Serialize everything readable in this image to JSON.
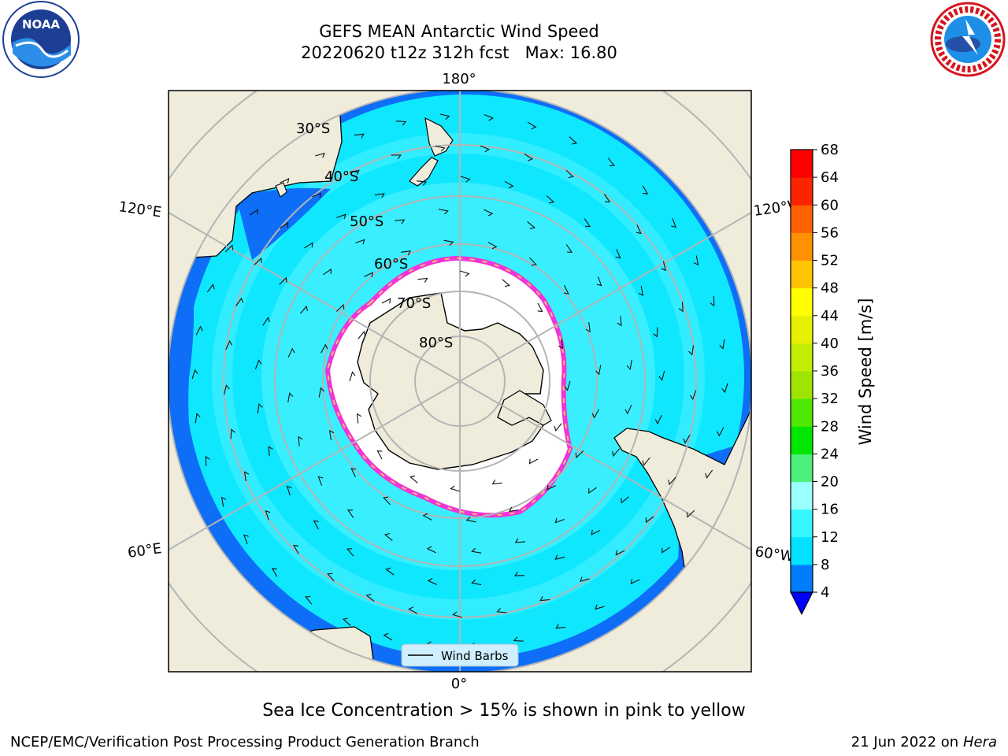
{
  "title_line1": "GEFS MEAN Antarctic Wind Speed",
  "title_line2": "20220620 t12z 312h fcst   Max: 16.80",
  "map": {
    "lon_labels": {
      "top": "180°",
      "bottom": "0°",
      "upper_left": "120°E",
      "upper_right": "120°W",
      "lower_left": "60°E",
      "lower_right": "60°W"
    },
    "lat_labels": [
      "30°S",
      "40°S",
      "50°S",
      "60°S",
      "70°S",
      "80°S"
    ],
    "legend_label": "Wind Barbs"
  },
  "colorbar": {
    "label": "Wind Speed [m/s]",
    "ticks": [
      "4",
      "8",
      "12",
      "16",
      "20",
      "24",
      "28",
      "32",
      "36",
      "40",
      "44",
      "48",
      "52",
      "56",
      "60",
      "64",
      "68"
    ],
    "colors": [
      "#0000ff",
      "#007cff",
      "#00e2ff",
      "#36f6ff",
      "#9affff",
      "#4cf07a",
      "#00e600",
      "#4fe800",
      "#9fe400",
      "#c4ee00",
      "#e6f000",
      "#ffff00",
      "#ffc400",
      "#ff9000",
      "#ff6000",
      "#ff2400",
      "#ff0000"
    ]
  },
  "colors": {
    "land": "#efecdc",
    "ocean_dark": "#0e6ef7",
    "ocean_mid": "#0fe7ff",
    "ocean_light": "#5cf5ff",
    "ice": "#ffffff",
    "ice_edge": "#f233d8",
    "grid": "#b4b4b4"
  },
  "ice_note": "Sea Ice Concentration > 15% is shown in pink to yellow",
  "footer": {
    "left": "NCEP/EMC/Verification Post Processing Product Generation Branch",
    "date": "21 Jun 2022 on",
    "machine": "Hera"
  },
  "logos": {
    "left_icon": "noaa-logo-icon",
    "right_icon": "nws-logo-icon"
  }
}
